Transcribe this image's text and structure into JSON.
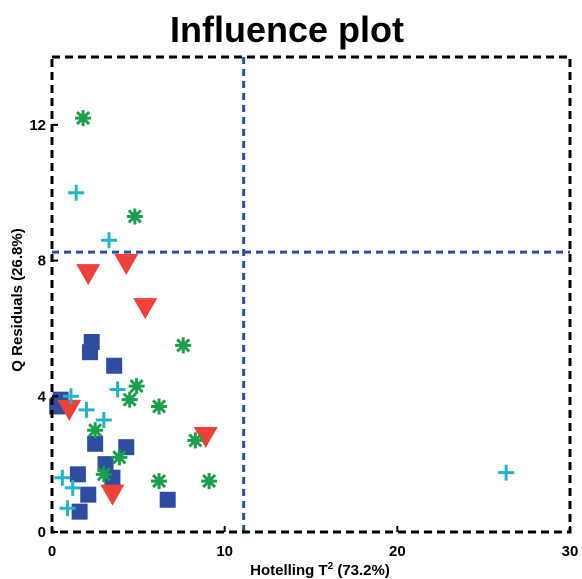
{
  "chart_data": {
    "type": "scatter",
    "title": "Influence plot",
    "xlabel_main": "Hotelling T",
    "xlabel_sup": "2",
    "xlabel_rest": " (73.2%)",
    "ylabel": "Q Residuals (26.8%)",
    "xlim": [
      0,
      30
    ],
    "ylim": [
      0,
      14
    ],
    "xticks": [
      "0",
      "10",
      "20",
      "30"
    ],
    "xtick_values": [
      0,
      10,
      20,
      30
    ],
    "yticks": [
      "0",
      "4",
      "8",
      "12"
    ],
    "ytick_values": [
      0,
      4,
      8,
      12
    ],
    "grid": false,
    "limits": {
      "x": 11.1,
      "y": 8.25
    },
    "limit_color": "#2f4da5",
    "series": [
      {
        "marker": "square",
        "color": "#2f4da0",
        "points": [
          [
            0.3,
            3.7
          ],
          [
            0.5,
            3.9
          ],
          [
            1.5,
            1.7
          ],
          [
            1.6,
            0.6
          ],
          [
            2.1,
            1.1
          ],
          [
            2.2,
            5.3
          ],
          [
            2.3,
            5.6
          ],
          [
            2.5,
            2.6
          ],
          [
            3.1,
            2.0
          ],
          [
            3.5,
            1.6
          ],
          [
            3.6,
            4.9
          ],
          [
            4.3,
            2.5
          ],
          [
            6.7,
            0.95
          ]
        ]
      },
      {
        "marker": "triangle-down",
        "color": "#f0403a",
        "points": [
          [
            1.0,
            3.6
          ],
          [
            2.1,
            7.6
          ],
          [
            3.5,
            1.1
          ],
          [
            4.3,
            7.9
          ],
          [
            5.4,
            6.6
          ],
          [
            8.9,
            2.8
          ]
        ]
      },
      {
        "marker": "asterisk",
        "color": "#1b9f4c",
        "points": [
          [
            1.8,
            12.2
          ],
          [
            2.5,
            3.0
          ],
          [
            3.0,
            1.7
          ],
          [
            3.9,
            2.2
          ],
          [
            4.5,
            3.9
          ],
          [
            4.8,
            9.3
          ],
          [
            4.9,
            4.3
          ],
          [
            6.2,
            3.7
          ],
          [
            6.2,
            1.5
          ],
          [
            7.6,
            5.5
          ],
          [
            8.3,
            2.7
          ],
          [
            9.1,
            1.5
          ]
        ]
      },
      {
        "marker": "plus",
        "color": "#20b5c9",
        "points": [
          [
            0.6,
            1.6
          ],
          [
            0.9,
            0.7
          ],
          [
            1.1,
            4.0
          ],
          [
            1.2,
            1.3
          ],
          [
            1.4,
            10.0
          ],
          [
            2.0,
            3.6
          ],
          [
            3.0,
            3.3
          ],
          [
            3.3,
            8.6
          ],
          [
            3.8,
            4.2
          ],
          [
            26.3,
            1.75
          ]
        ]
      }
    ]
  }
}
